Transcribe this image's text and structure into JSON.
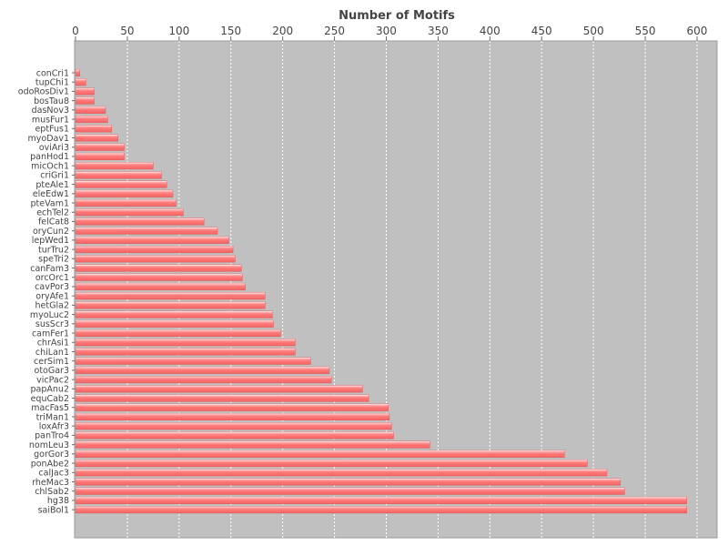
{
  "chart_data": {
    "type": "bar",
    "orientation": "horizontal",
    "title": "Number of Motifs",
    "xlabel": "",
    "ylabel": "",
    "xlim": [
      0,
      620
    ],
    "x_ticks": [
      0,
      50,
      100,
      150,
      200,
      250,
      300,
      350,
      400,
      450,
      500,
      550,
      600
    ],
    "x_axis_position": "top",
    "grid": true,
    "legend": "none",
    "colors": {
      "bar": "#ff7a7a",
      "bar_highlight": "#ffd0d0",
      "plot_background": "#c0c0c0",
      "grid": "#ffffff"
    },
    "categories": [
      "conCri1",
      "tupChi1",
      "odoRosDiv1",
      "bosTau8",
      "dasNov3",
      "musFur1",
      "eptFus1",
      "myoDav1",
      "oviAri3",
      "panHod1",
      "micOch1",
      "criGri1",
      "pteAle1",
      "eleEdw1",
      "pteVam1",
      "echTel2",
      "felCat8",
      "oryCun2",
      "lepWed1",
      "turTru2",
      "speTri2",
      "canFam3",
      "orcOrc1",
      "cavPor3",
      "oryAfe1",
      "hetGla2",
      "myoLuc2",
      "susScr3",
      "camFer1",
      "chrAsi1",
      "chiLan1",
      "cerSim1",
      "otoGar3",
      "vicPac2",
      "papAnu2",
      "equCab2",
      "macFas5",
      "triMan1",
      "loxAfr3",
      "panTro4",
      "nomLeu3",
      "gorGor3",
      "ponAbe2",
      "calJac3",
      "rheMac3",
      "chlSab2",
      "hg38",
      "saiBol1"
    ],
    "values": [
      4,
      10,
      18,
      18,
      29,
      31,
      35,
      41,
      47,
      47,
      75,
      83,
      88,
      94,
      97,
      104,
      124,
      137,
      148,
      152,
      154,
      160,
      161,
      164,
      183,
      183,
      190,
      191,
      198,
      212,
      212,
      227,
      245,
      247,
      277,
      283,
      302,
      303,
      305,
      307,
      342,
      472,
      494,
      513,
      526,
      530,
      590,
      590
    ]
  }
}
